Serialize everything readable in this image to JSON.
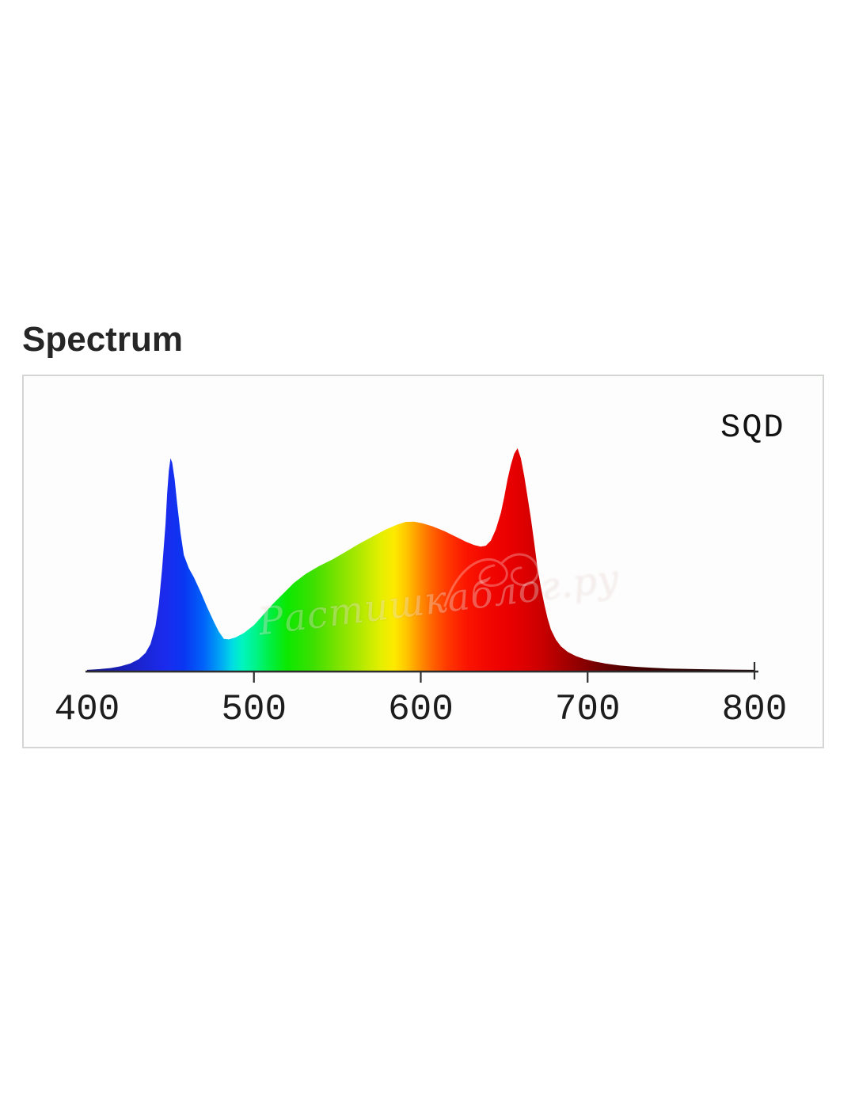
{
  "title": "Spectrum",
  "watermark": {
    "text": "Растишкаблог.ру"
  },
  "panel": {
    "border_color": "#d3d6d3",
    "background": "#fdfdfd"
  },
  "chart_data": {
    "type": "area",
    "title": "Spectrum",
    "annotation": "SQD",
    "xlabel": "",
    "ylabel": "",
    "xlim": [
      400,
      802
    ],
    "ylim": [
      0,
      1.05
    ],
    "grid": false,
    "legend_position": "top-right",
    "axis_color": "#2e2e2e",
    "label_color": "#1d1d1d",
    "x_ticks": [
      {
        "value": 400,
        "mark": "none"
      },
      {
        "value": 500,
        "mark": "below"
      },
      {
        "value": 600,
        "mark": "below"
      },
      {
        "value": 700,
        "mark": "below"
      },
      {
        "value": 800,
        "mark": "cross"
      }
    ],
    "points": [
      [
        400,
        0.004
      ],
      [
        407,
        0.007
      ],
      [
        414,
        0.012
      ],
      [
        420,
        0.02
      ],
      [
        426,
        0.033
      ],
      [
        431,
        0.052
      ],
      [
        435,
        0.08
      ],
      [
        438,
        0.12
      ],
      [
        441,
        0.2
      ],
      [
        443,
        0.3
      ],
      [
        445,
        0.46
      ],
      [
        447,
        0.66
      ],
      [
        448,
        0.8
      ],
      [
        449,
        0.9
      ],
      [
        450,
        0.955
      ],
      [
        451,
        0.935
      ],
      [
        452.5,
        0.86
      ],
      [
        454,
        0.75
      ],
      [
        456,
        0.62
      ],
      [
        458,
        0.52
      ],
      [
        461,
        0.46
      ],
      [
        464,
        0.42
      ],
      [
        468,
        0.355
      ],
      [
        472,
        0.285
      ],
      [
        476,
        0.22
      ],
      [
        479,
        0.175
      ],
      [
        482,
        0.143
      ],
      [
        485,
        0.141
      ],
      [
        489,
        0.15
      ],
      [
        494,
        0.17
      ],
      [
        500,
        0.205
      ],
      [
        506,
        0.255
      ],
      [
        512,
        0.305
      ],
      [
        518,
        0.35
      ],
      [
        524,
        0.395
      ],
      [
        531,
        0.435
      ],
      [
        539,
        0.47
      ],
      [
        547,
        0.5
      ],
      [
        555,
        0.535
      ],
      [
        563,
        0.57
      ],
      [
        571,
        0.603
      ],
      [
        579,
        0.635
      ],
      [
        586,
        0.657
      ],
      [
        591,
        0.669
      ],
      [
        596,
        0.67
      ],
      [
        601,
        0.663
      ],
      [
        607,
        0.649
      ],
      [
        614,
        0.628
      ],
      [
        621,
        0.602
      ],
      [
        627,
        0.58
      ],
      [
        632,
        0.565
      ],
      [
        636,
        0.558
      ],
      [
        639,
        0.562
      ],
      [
        642,
        0.585
      ],
      [
        645,
        0.635
      ],
      [
        648,
        0.71
      ],
      [
        650,
        0.78
      ],
      [
        652,
        0.86
      ],
      [
        654,
        0.925
      ],
      [
        656,
        0.975
      ],
      [
        658,
        1.0
      ],
      [
        660,
        0.955
      ],
      [
        662,
        0.875
      ],
      [
        664,
        0.78
      ],
      [
        666,
        0.685
      ],
      [
        668,
        0.575
      ],
      [
        670,
        0.46
      ],
      [
        672,
        0.375
      ],
      [
        674,
        0.3
      ],
      [
        676,
        0.235
      ],
      [
        678,
        0.185
      ],
      [
        681,
        0.14
      ],
      [
        684,
        0.11
      ],
      [
        688,
        0.085
      ],
      [
        693,
        0.066
      ],
      [
        698,
        0.053
      ],
      [
        704,
        0.042
      ],
      [
        711,
        0.032
      ],
      [
        719,
        0.024
      ],
      [
        728,
        0.018
      ],
      [
        738,
        0.014
      ],
      [
        749,
        0.01
      ],
      [
        761,
        0.008
      ],
      [
        774,
        0.006
      ],
      [
        787,
        0.005
      ],
      [
        800,
        0.004
      ]
    ],
    "gradient_stops": [
      [
        400,
        "#141383"
      ],
      [
        428,
        "#1a22c8"
      ],
      [
        447,
        "#1b2bee"
      ],
      [
        458,
        "#0a36f2"
      ],
      [
        470,
        "#0064fa"
      ],
      [
        480,
        "#00a6f5"
      ],
      [
        487,
        "#00dce4"
      ],
      [
        493,
        "#00f4c0"
      ],
      [
        501,
        "#00f489"
      ],
      [
        510,
        "#00ef40"
      ],
      [
        520,
        "#0ce800"
      ],
      [
        536,
        "#3fdf00"
      ],
      [
        551,
        "#7fe300"
      ],
      [
        564,
        "#b2e900"
      ],
      [
        576,
        "#e4ef00"
      ],
      [
        584,
        "#fdea00"
      ],
      [
        591,
        "#ffc800"
      ],
      [
        599,
        "#ff9400"
      ],
      [
        607,
        "#ff6300"
      ],
      [
        616,
        "#ff3800"
      ],
      [
        627,
        "#fb1600"
      ],
      [
        639,
        "#f30800"
      ],
      [
        652,
        "#ea0000"
      ],
      [
        663,
        "#dc0000"
      ],
      [
        674,
        "#c60000"
      ],
      [
        686,
        "#a70000"
      ],
      [
        699,
        "#850000"
      ],
      [
        713,
        "#640000"
      ],
      [
        729,
        "#480000"
      ],
      [
        748,
        "#330000"
      ],
      [
        770,
        "#250000"
      ],
      [
        802,
        "#1c0000"
      ]
    ]
  }
}
